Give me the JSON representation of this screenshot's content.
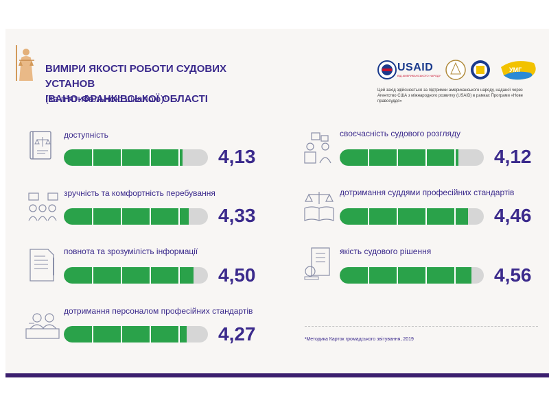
{
  "header": {
    "title_line1": "ВИМІРИ ЯКОСТІ РОБОТИ СУДОВИХ УСТАНОВ",
    "title_line2": "ІВАНО-ФРАНКІВСЬКОЇ ОБЛАСТІ",
    "subtitle": "(за п’ятибальною шкалою)¹"
  },
  "logos": {
    "usaid": "USAID",
    "usaid_sub": "ВІД АМЕРИКАНСЬКОГО НАРОДУ",
    "umg": "УМГ",
    "funding_note": "Цей захід здійснюється за підтримки американського народу, наданої через Агентство США з міжнародного розвитку (USAID) в рамках Програми «Нове правосуддя»"
  },
  "metrics_scale_max": 5,
  "metrics": [
    {
      "id": "accessibility",
      "label": "доступність",
      "value": "4,13",
      "score": 4.13,
      "icon": "law-book-icon"
    },
    {
      "id": "comfort",
      "label": "зручність та комфортність перебування",
      "value": "4,33",
      "score": 4.33,
      "icon": "visitors-group-icon"
    },
    {
      "id": "information",
      "label": "повнота та зрозумілість інформації",
      "value": "4,50",
      "score": 4.5,
      "icon": "document-pen-icon"
    },
    {
      "id": "staff_standards",
      "label": "дотримання персоналом професійних стандартів",
      "value": "4,27",
      "score": 4.27,
      "icon": "staff-desk-icon"
    },
    {
      "id": "timeliness",
      "label": "своєчасність судового розгляду",
      "value": "4,12",
      "score": 4.12,
      "icon": "court-hearing-icon"
    },
    {
      "id": "judges_standards",
      "label": "дотримання суддями професійних стандартів",
      "value": "4,46",
      "score": 4.46,
      "icon": "scales-book-icon"
    },
    {
      "id": "decision_quality",
      "label": "якість судового рішення",
      "value": "4,56",
      "score": 4.56,
      "icon": "decision-scroll-icon"
    }
  ],
  "footnote": "¹Методика Карток громадського звітування, 2019",
  "colors": {
    "accent": "#3b2a8c",
    "bar_fill": "#2aa24a",
    "bar_track": "#d6d6d6",
    "bottom_bar": "#3b1f6e"
  }
}
